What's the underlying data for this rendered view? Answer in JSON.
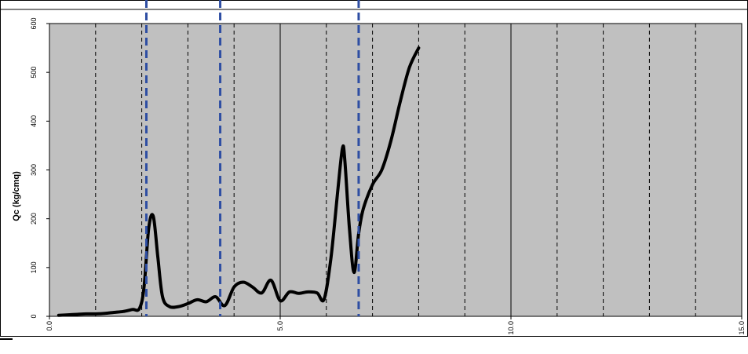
{
  "chart_data": {
    "type": "line",
    "title": "",
    "xlabel": "",
    "ylabel": "Qc (kg/cmq)",
    "xlim": [
      0,
      15
    ],
    "ylim": [
      0,
      600
    ],
    "x_ticks": [
      {
        "value": 0,
        "label": "0.0"
      },
      {
        "value": 5,
        "label": "5.0"
      },
      {
        "value": 10,
        "label": "10.0"
      },
      {
        "value": 15,
        "label": "15.0"
      }
    ],
    "y_ticks": [
      {
        "value": 0,
        "label": "0"
      },
      {
        "value": 100,
        "label": "100"
      },
      {
        "value": 200,
        "label": "200"
      },
      {
        "value": 300,
        "label": "300"
      },
      {
        "value": 400,
        "label": "400"
      },
      {
        "value": 500,
        "label": "500"
      },
      {
        "value": 600,
        "label": "600"
      }
    ],
    "major_gridlines_x": [
      5,
      10
    ],
    "minor_gridlines_x": [
      1,
      2,
      3,
      4,
      6,
      7,
      8,
      9,
      11,
      12,
      13,
      14
    ],
    "markers_x": [
      2.1,
      3.7,
      6.7
    ],
    "colors": {
      "plot_background": "#c0c0c0",
      "line": "#000000",
      "marker": "#2e4ea3",
      "grid": "#000000"
    },
    "series": [
      {
        "x": [
          0.2,
          0.4,
          0.6,
          0.8,
          1.0,
          1.2,
          1.4,
          1.6,
          1.8,
          1.95,
          2.05,
          2.15,
          2.25,
          2.35,
          2.45,
          2.6,
          2.8,
          3.0,
          3.2,
          3.4,
          3.6,
          3.8,
          4.0,
          4.2,
          4.4,
          4.6,
          4.8,
          5.0,
          5.2,
          5.4,
          5.6,
          5.8,
          5.95,
          6.1,
          6.25,
          6.35,
          6.4,
          6.5,
          6.6,
          6.7,
          6.8,
          7.0,
          7.2,
          7.4,
          7.6,
          7.8,
          8.0
        ],
        "y": [
          2,
          3,
          4,
          5,
          5,
          6,
          8,
          10,
          14,
          16,
          60,
          180,
          205,
          120,
          40,
          20,
          20,
          26,
          34,
          30,
          40,
          22,
          60,
          70,
          60,
          48,
          74,
          32,
          50,
          47,
          50,
          48,
          35,
          120,
          260,
          345,
          320,
          180,
          90,
          170,
          220,
          270,
          300,
          360,
          440,
          510,
          550
        ]
      }
    ]
  }
}
